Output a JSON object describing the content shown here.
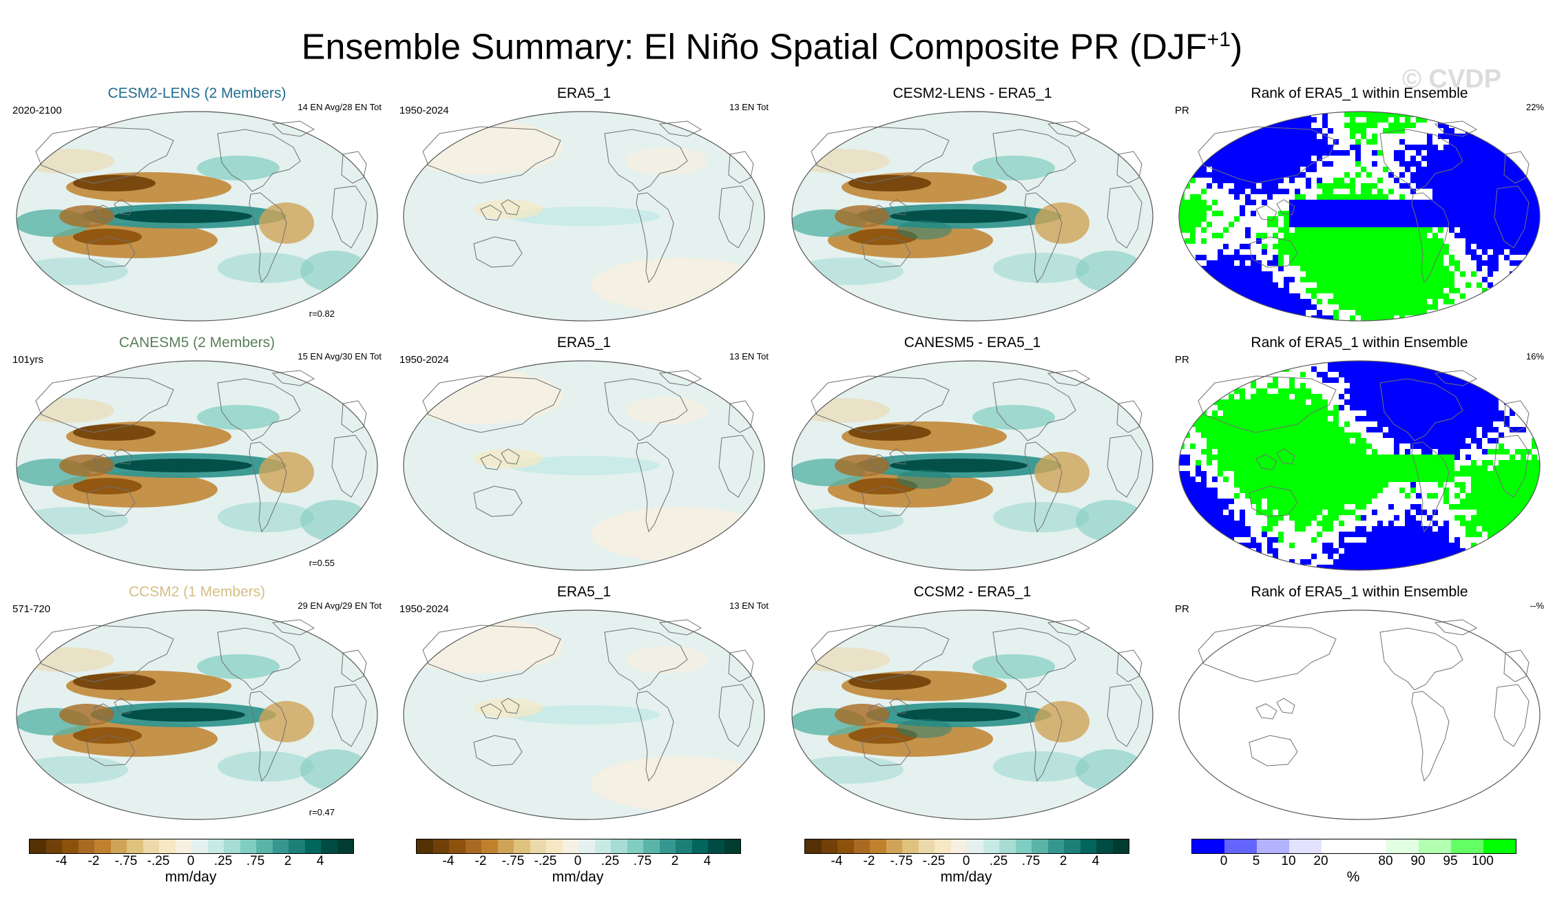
{
  "title": {
    "main": "Ensemble Summary: El Niño Spatial Composite PR (DJF",
    "sup": "+1",
    "close": ")"
  },
  "watermark": "© CVDP",
  "colors": {
    "model1": "#1f6d8f",
    "model2": "#5a7f58",
    "model3": "#d3bf83",
    "land": "#f3ecdc",
    "ocean": "#e4f1ef",
    "outline": "#707070"
  },
  "rows": [
    {
      "model": {
        "title": "CESM2-LENS (2 Members)",
        "years": "2020-2100",
        "count": "14 EN Avg/28 EN Tot",
        "corr": "r=0.82"
      },
      "obs": {
        "title": "ERA5_1",
        "years": "1950-2024",
        "count": "13 EN Tot"
      },
      "diff": {
        "title": "CESM2-LENS - ERA5_1"
      },
      "rank": {
        "title": "Rank of ERA5_1 within Ensemble",
        "var": "PR",
        "pct": "22%"
      }
    },
    {
      "model": {
        "title": "CANESM5 (2 Members)",
        "years": "101yrs",
        "count": "15 EN Avg/30 EN Tot",
        "corr": "r=0.55"
      },
      "obs": {
        "title": "ERA5_1",
        "years": "1950-2024",
        "count": "13 EN Tot"
      },
      "diff": {
        "title": "CANESM5 - ERA5_1"
      },
      "rank": {
        "title": "Rank of ERA5_1 within Ensemble",
        "var": "PR",
        "pct": "16%"
      }
    },
    {
      "model": {
        "title": "CCSM2 (1 Members)",
        "years": "571-720",
        "count": "29 EN Avg/29 EN Tot",
        "corr": "r=0.47"
      },
      "obs": {
        "title": "ERA5_1",
        "years": "1950-2024",
        "count": "13 EN Tot"
      },
      "diff": {
        "title": "CCSM2 - ERA5_1"
      },
      "rank": {
        "title": "Rank of ERA5_1 within Ensemble",
        "var": "PR",
        "pct": "--%"
      }
    }
  ],
  "colorbars": {
    "precip": {
      "colors": [
        "#543005",
        "#704008",
        "#8c510a",
        "#a86a23",
        "#bf812d",
        "#d0a458",
        "#dfc27d",
        "#ecd9ab",
        "#f6e8c3",
        "#f5f0e1",
        "#e4f1ef",
        "#c7eae5",
        "#a6dcd4",
        "#80cdc1",
        "#5ab4a8",
        "#35978f",
        "#1d7f76",
        "#01665e",
        "#004c44",
        "#003c30"
      ],
      "ticks": [
        "-4",
        "-2",
        "-.75",
        "-.25",
        "0",
        ".25",
        ".75",
        "2",
        "4"
      ],
      "unit": "mm/day"
    },
    "rank": {
      "colors": [
        "#0000ff",
        "#6464ff",
        "#b2b2ff",
        "#e2e2ff",
        "#ffffff",
        "#ffffff",
        "#e2ffe2",
        "#b2ffb2",
        "#64ff64",
        "#00ff00"
      ],
      "ticks": [
        "0",
        "5",
        "10",
        "20",
        "80",
        "90",
        "95",
        "100"
      ],
      "unit": "%"
    }
  }
}
